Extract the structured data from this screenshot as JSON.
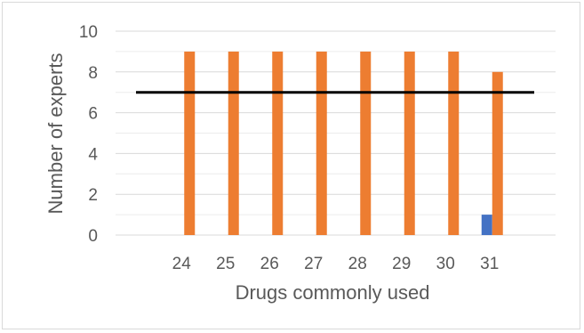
{
  "chart_data": {
    "type": "bar",
    "title": "",
    "xlabel": "Drugs commonly used",
    "ylabel": "Number of experts",
    "categories": [
      "",
      "24",
      "25",
      "26",
      "27",
      "28",
      "29",
      "30",
      "31",
      ""
    ],
    "series": [
      {
        "values": [
          null,
          null,
          null,
          null,
          null,
          null,
          null,
          null,
          1,
          null
        ],
        "color": "#4472c4"
      },
      {
        "values": [
          null,
          9,
          9,
          9,
          9,
          9,
          9,
          9,
          8,
          null
        ],
        "color": "#ed7d31"
      }
    ],
    "threshold_line": {
      "value": 7,
      "color": "#000000"
    },
    "ylim": [
      0,
      10
    ],
    "yticks": [
      0,
      2,
      4,
      6,
      8,
      10
    ],
    "grid": true,
    "legend": "none"
  }
}
